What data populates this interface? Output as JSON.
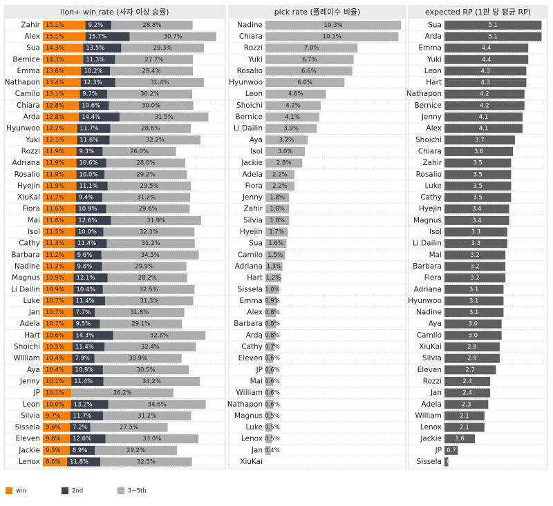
{
  "chart_data": [
    {
      "type": "stacked_bar",
      "title": "lion+ win rate (사자 이상 승률)",
      "categories": [
        "Zahir",
        "Alex",
        "Sua",
        "Bernice",
        "Emma",
        "Nathapon",
        "Camilo",
        "Chiara",
        "Arda",
        "Hyunwoo",
        "Yuki",
        "Rozzi",
        "Adriana",
        "Rosalio",
        "Hyejin",
        "XiuKai",
        "Fiora",
        "Mai",
        "Isol",
        "Cathy",
        "Barbara",
        "Nadine",
        "Magnus",
        "Li Dailin",
        "Luke",
        "Jan",
        "Adela",
        "Hart",
        "Shoichi",
        "William",
        "Aya",
        "Jenny",
        "JP",
        "Leon",
        "Silvia",
        "Sissela",
        "Eleven",
        "Jackie",
        "Lenox"
      ],
      "xlim": [
        0,
        64
      ],
      "series": [
        {
          "name": "win",
          "color": "#f5820d",
          "values": [
            15.1,
            15.1,
            14.3,
            14.3,
            13.6,
            13.4,
            13.1,
            12.8,
            12.8,
            12.2,
            12.1,
            11.9,
            11.9,
            11.9,
            11.9,
            11.7,
            11.6,
            11.6,
            11.5,
            11.3,
            11.2,
            11.2,
            10.9,
            10.9,
            10.7,
            10.7,
            10.7,
            10.6,
            10.5,
            10.4,
            10.4,
            10.1,
            10.1,
            10.0,
            9.7,
            9.6,
            9.6,
            9.5,
            8.6
          ],
          "value_labels": [
            "15.1%",
            "15.1%",
            "14.3%",
            "14.3%",
            "13.6%",
            "13.4%",
            "13.1%",
            "12.8%",
            "12.8%",
            "12.2%",
            "12.1%",
            "11.9%",
            "11.9%",
            "11.9%",
            "11.9%",
            "11.7%",
            "11.6%",
            "11.6%",
            "11.5%",
            "11.3%",
            "11.2%",
            "11.2%",
            "10.9%",
            "10.9%",
            "10.7%",
            "10.7%",
            "10.7%",
            "10.6%",
            "10.5%",
            "10.4%",
            "10.4%",
            "10.1%",
            "10.1%",
            "10.0%",
            "9.7%",
            "9.6%",
            "9.6%",
            "9.5%",
            "8.6%"
          ]
        },
        {
          "name": "2nd",
          "color": "#3c4150",
          "values": [
            9.2,
            15.7,
            13.5,
            11.3,
            10.2,
            12.3,
            9.7,
            10.6,
            14.4,
            11.7,
            11.6,
            9.3,
            10.6,
            10.0,
            11.1,
            9.4,
            10.9,
            12.6,
            10.0,
            11.4,
            9.6,
            9.8,
            12.1,
            10.4,
            11.4,
            7.7,
            9.5,
            14.3,
            11.4,
            7.9,
            10.9,
            11.4,
            null,
            13.2,
            11.7,
            7.2,
            12.6,
            8.9,
            11.8
          ],
          "value_labels": [
            "9.2%",
            "15.7%",
            "13.5%",
            "11.3%",
            "10.2%",
            "12.3%",
            "9.7%",
            "10.6%",
            "14.4%",
            "11.7%",
            "11.6%",
            "9.3%",
            "10.6%",
            "10.0%",
            "11.1%",
            "9.4%",
            "10.9%",
            "12.6%",
            "10.0%",
            "11.4%",
            "9.6%",
            "9.8%",
            "12.1%",
            "10.4%",
            "11.4%",
            "7.7%",
            "9.5%",
            "14.3%",
            "11.4%",
            "7.9%",
            "10.9%",
            "11.4%",
            null,
            "13.2%",
            "11.7%",
            "7.2%",
            "12.6%",
            "8.9%",
            "11.8%"
          ]
        },
        {
          "name": "3~5th",
          "color": "#adadad",
          "values": [
            28.8,
            30.7,
            29.3,
            27.7,
            29.4,
            31.4,
            30.2,
            30.0,
            31.5,
            28.6,
            32.2,
            26.0,
            28.0,
            29.2,
            29.5,
            31.2,
            29.6,
            31.9,
            32.3,
            31.2,
            34.5,
            29.9,
            28.2,
            32.5,
            31.3,
            31.8,
            29.1,
            32.8,
            32.4,
            30.9,
            30.5,
            34.2,
            36.2,
            34.6,
            31.2,
            27.5,
            33.0,
            29.2,
            32.5
          ],
          "value_labels": [
            "28.8%",
            "30.7%",
            "29.3%",
            "27.7%",
            "29.4%",
            "31.4%",
            "30.2%",
            "30.0%",
            "31.5%",
            "28.6%",
            "32.2%",
            "26.0%",
            "28.0%",
            "29.2%",
            "29.5%",
            "31.2%",
            "29.6%",
            "31.9%",
            "32.3%",
            "31.2%",
            "34.5%",
            "29.9%",
            "28.2%",
            "32.5%",
            "31.3%",
            "31.8%",
            "29.1%",
            "32.8%",
            "32.4%",
            "30.9%",
            "30.5%",
            "34.2%",
            "36.2%",
            "34.6%",
            "31.2%",
            "27.5%",
            "33.0%",
            "29.2%",
            "32.5%"
          ]
        }
      ]
    },
    {
      "type": "bar",
      "title": "pick rate (플레이수 비율)",
      "color": "#b0b0b0",
      "xlim": [
        0,
        10.5
      ],
      "categories": [
        "Nadine",
        "Chiara",
        "Rozzi",
        "Yuki",
        "Rosalio",
        "Hyunwoo",
        "Leon",
        "Shoichi",
        "Bernice",
        "Li Dailin",
        "Aya",
        "Isol",
        "Jackie",
        "Adela",
        "Fiora",
        "Jenny",
        "Zahir",
        "Silvia",
        "Hyejin",
        "Sua",
        "Camilo",
        "Adriana",
        "Hart",
        "Sissela",
        "Emma",
        "Alex",
        "Barbara",
        "Arda",
        "Cathy",
        "Eleven",
        "JP",
        "Mai",
        "William",
        "Nathapon",
        "Magnus",
        "Luke",
        "Lenox",
        "Jan",
        "XiuKai"
      ],
      "values": [
        10.3,
        10.1,
        7.0,
        6.7,
        6.6,
        6.0,
        4.6,
        4.2,
        4.1,
        3.9,
        3.2,
        3.0,
        2.8,
        2.2,
        2.2,
        1.8,
        1.8,
        1.8,
        1.7,
        1.6,
        1.5,
        1.3,
        1.2,
        1.0,
        0.9,
        0.8,
        0.8,
        0.8,
        0.7,
        0.6,
        0.6,
        0.6,
        0.6,
        0.6,
        0.5,
        0.5,
        0.5,
        0.4,
        null
      ],
      "value_labels": [
        "10.3%",
        "10.1%",
        "7.0%",
        "6.7%",
        "6.6%",
        "6.0%",
        "4.6%",
        "4.2%",
        "4.1%",
        "3.9%",
        "3.2%",
        "3.0%",
        "2.8%",
        "2.2%",
        "2.2%",
        "1.8%",
        "1.8%",
        "1.8%",
        "1.7%",
        "1.6%",
        "1.5%",
        "1.3%",
        "1.2%",
        "1.0%",
        "0.9%",
        "0.8%",
        "0.8%",
        "0.8%",
        "0.7%",
        "0.6%",
        "0.6%",
        "0.6%",
        "0.6%",
        "0.6%",
        "0.5%",
        "0.5%",
        "0.5%",
        "0.4%",
        null
      ]
    },
    {
      "type": "bar",
      "title": "expected RP (1판 당 평균 RP)",
      "color": "#5f5f5f",
      "xlim": [
        0,
        5.3
      ],
      "categories": [
        "Sua",
        "Arda",
        "Emma",
        "Yuki",
        "Leon",
        "Hart",
        "Nathapon",
        "Bernice",
        "Jenny",
        "Alex",
        "Shoichi",
        "Chiara",
        "Zahir",
        "Rosalio",
        "Luke",
        "Cathy",
        "Hyejin",
        "Magnus",
        "Isol",
        "Li Dailin",
        "Mai",
        "Barbara",
        "Fiora",
        "Adriana",
        "Hyunwoo",
        "Nadine",
        "Aya",
        "Camilo",
        "XiuKai",
        "Silvia",
        "Eleven",
        "Rozzi",
        "Jan",
        "Adela",
        "William",
        "Lenox",
        "Jackie",
        "JP",
        "Sissela"
      ],
      "values": [
        5.1,
        5.1,
        4.4,
        4.4,
        4.3,
        4.3,
        4.2,
        4.2,
        4.1,
        4.1,
        3.7,
        3.6,
        3.5,
        3.5,
        3.5,
        3.5,
        3.4,
        3.4,
        3.3,
        3.3,
        3.2,
        3.2,
        3.2,
        3.1,
        3.1,
        3.1,
        3.0,
        3.0,
        2.9,
        2.9,
        2.7,
        2.4,
        2.4,
        2.3,
        2.1,
        2.1,
        1.6,
        0.7,
        0.2
      ],
      "value_labels": [
        "5.1",
        "5.1",
        "4.4",
        "4.4",
        "4.3",
        "4.3",
        "4.2",
        "4.2",
        "4.1",
        "4.1",
        "3.7",
        "3.6",
        "3.5",
        "3.5",
        "3.5",
        "3.5",
        "3.4",
        "3.4",
        "3.3",
        "3.3",
        "3.2",
        "3.2",
        "3.2",
        "3.1",
        "3.1",
        "3.1",
        "3.0",
        "3.0",
        "2.9",
        "2.9",
        "2.7",
        "2.4",
        "2.4",
        "2.3",
        "2.1",
        "2.1",
        "1.6",
        "0.7",
        "0.2"
      ]
    }
  ]
}
